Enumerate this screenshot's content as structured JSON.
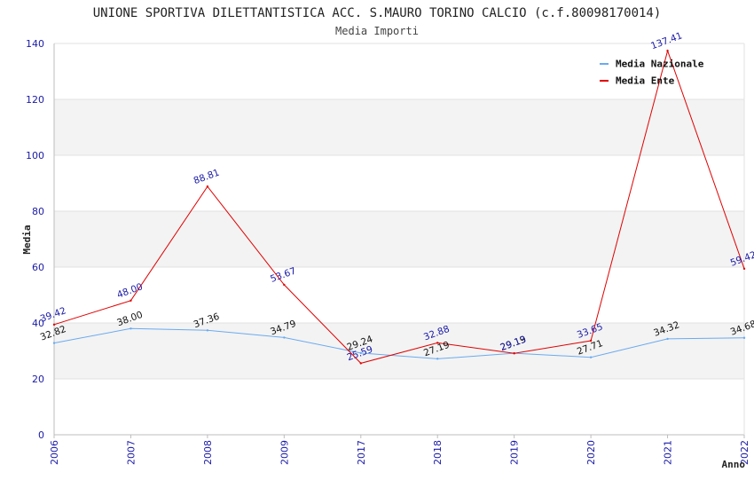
{
  "chart_data": {
    "type": "line",
    "title": "UNIONE SPORTIVA DILETTANTISTICA ACC. S.MAURO TORINO CALCIO (c.f.80098170014)",
    "subtitle": "Media Importi",
    "xlabel": "Anno",
    "ylabel": "Media",
    "ylim": [
      0,
      140
    ],
    "yticks": [
      0,
      20,
      40,
      60,
      80,
      100,
      120,
      140
    ],
    "categories": [
      "2006",
      "2007",
      "2008",
      "2009",
      "2017",
      "2018",
      "2019",
      "2020",
      "2021",
      "2022"
    ],
    "grid": true,
    "legend_position": "top-right",
    "series": [
      {
        "name": "Media Nazionale",
        "color": "#6aaaf0",
        "label_color": "#111111",
        "values": [
          32.82,
          38.0,
          37.36,
          34.79,
          29.24,
          27.19,
          29.19,
          27.71,
          34.32,
          34.68
        ],
        "labels": [
          "32.82",
          "38.00",
          "37.36",
          "34.79",
          "29.24",
          "27.19",
          "29.19",
          "27.71",
          "34.32",
          "34.68"
        ]
      },
      {
        "name": "Media Ente",
        "color": "#e00000",
        "label_color": "#1a1aa8",
        "values": [
          39.42,
          48.0,
          88.81,
          53.67,
          25.59,
          32.88,
          29.13,
          33.65,
          137.41,
          59.42
        ],
        "labels": [
          "39.42",
          "48.00",
          "88.81",
          "53.67",
          "25.59",
          "32.88",
          "29.13",
          "33.65",
          "137.41",
          "59.42"
        ]
      }
    ]
  }
}
